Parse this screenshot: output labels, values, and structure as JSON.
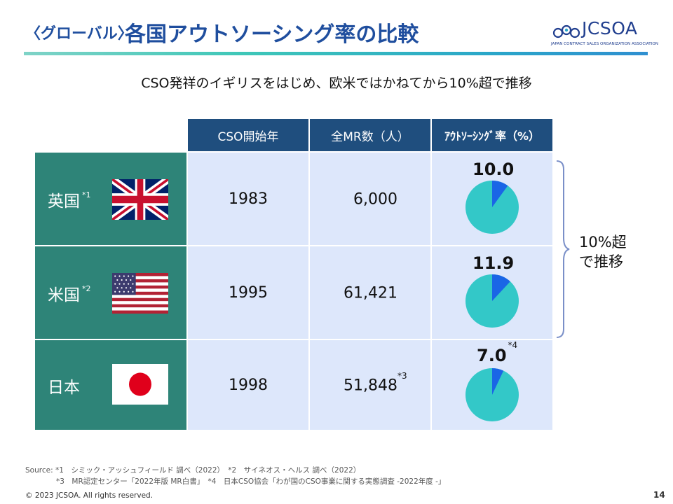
{
  "header": {
    "title_prefix": "〈グローバル〉",
    "title": "各国アウトソーシング率の比較",
    "logo_text": "JCSOA",
    "logo_subtext": "JAPAN CONTRACT SALES ORGANIZATION ASSOCIATION"
  },
  "subtitle": "CSO発祥のイギリスをはじめ、欧米ではかねてから10%超で推移",
  "table": {
    "columns": [
      "CSO開始年",
      "全MR数（人）",
      "ｱｳﾄｿｰｼﾝｸﾞ率（%）"
    ],
    "rows": [
      {
        "country": "英国",
        "note": "*1",
        "flag": "uk-flag-icon",
        "start_year": "1983",
        "mr_count": "6,000",
        "mr_note": "",
        "rate_label": "10.0",
        "rate_note": "",
        "rate": 10.0
      },
      {
        "country": "米国",
        "note": "*2",
        "flag": "us-flag-icon",
        "start_year": "1995",
        "mr_count": "61,421",
        "mr_note": "",
        "rate_label": "11.9",
        "rate_note": "",
        "rate": 11.9
      },
      {
        "country": "日本",
        "note": "",
        "flag": "japan-flag-icon",
        "start_year": "1998",
        "mr_count": "51,848",
        "mr_note": "*3",
        "rate_label": "7.0",
        "rate_note": "*4",
        "rate": 7.0
      }
    ]
  },
  "brace_label_line1": "10%超",
  "brace_label_line2": "で推移",
  "source": {
    "line1": "Source: *1　シミック・アッシュフィールド 調べ（2022）　*2　サイネオス・ヘルス 調べ（2022）",
    "line2": "*3　MR認定センター「2022年版 MR白書」　*4　日本CSO協会「わが国のCSO事業に関する実態調査 -2022年度 -」"
  },
  "copyright": "© 2023 JCSOA. All rights reserved.",
  "page_number": "14",
  "colors": {
    "title": "#1f4e9e",
    "header_cell": "#1f4e7e",
    "row_header": "#2e8478",
    "cell_bg": "#dde7fb",
    "pie_main": "#33c8c8",
    "pie_slice": "#1a66e6"
  }
}
